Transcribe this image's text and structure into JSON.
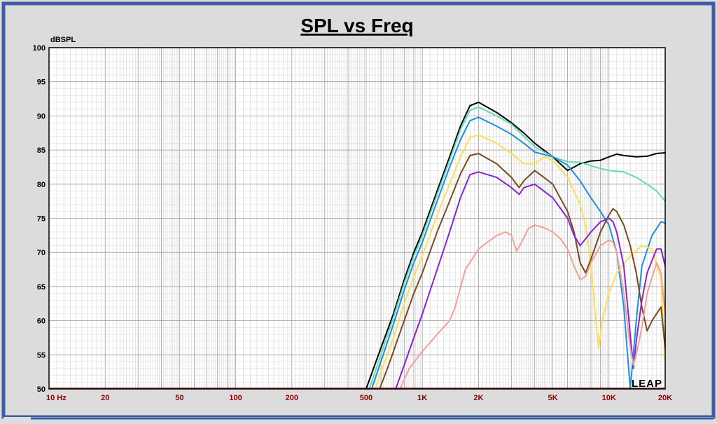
{
  "chart_data": {
    "type": "line",
    "title": "SPL vs Freq",
    "ylabel": "dBSPL",
    "xlabel": "",
    "x_scale": "log",
    "xlim": [
      10,
      20000
    ],
    "ylim": [
      50,
      100
    ],
    "x_ticks": [
      {
        "value": 10,
        "label": "10  Hz"
      },
      {
        "value": 20,
        "label": "20"
      },
      {
        "value": 50,
        "label": "50"
      },
      {
        "value": 100,
        "label": "100"
      },
      {
        "value": 200,
        "label": "200"
      },
      {
        "value": 500,
        "label": "500"
      },
      {
        "value": 1000,
        "label": "1K"
      },
      {
        "value": 2000,
        "label": "2K"
      },
      {
        "value": 5000,
        "label": "5K"
      },
      {
        "value": 10000,
        "label": "10K"
      },
      {
        "value": 20000,
        "label": "20K"
      }
    ],
    "y_ticks": [
      50,
      55,
      60,
      65,
      70,
      75,
      80,
      85,
      90,
      95,
      100
    ],
    "grid": true,
    "logo_text": "LEAP",
    "series": [
      {
        "color": "#000000",
        "points": [
          [
            500,
            50
          ],
          [
            600,
            56
          ],
          [
            700,
            61
          ],
          [
            800,
            66
          ],
          [
            900,
            70
          ],
          [
            1000,
            73
          ],
          [
            1200,
            79
          ],
          [
            1400,
            84
          ],
          [
            1600,
            88.5
          ],
          [
            1800,
            91.5
          ],
          [
            2000,
            92
          ],
          [
            2500,
            90.5
          ],
          [
            3000,
            89
          ],
          [
            3500,
            87.5
          ],
          [
            4000,
            86
          ],
          [
            5000,
            84
          ],
          [
            6000,
            82
          ],
          [
            6500,
            82.5
          ],
          [
            7000,
            83
          ],
          [
            8000,
            83.4
          ],
          [
            9000,
            83.5
          ],
          [
            10000,
            84
          ],
          [
            11000,
            84.4
          ],
          [
            12000,
            84.2
          ],
          [
            14000,
            84
          ],
          [
            16000,
            84.1
          ],
          [
            18000,
            84.5
          ],
          [
            20000,
            84.6
          ]
        ]
      },
      {
        "color": "#66d9b8",
        "points": [
          [
            520,
            50
          ],
          [
            600,
            55
          ],
          [
            700,
            60.5
          ],
          [
            800,
            65.5
          ],
          [
            900,
            69.5
          ],
          [
            1000,
            72.5
          ],
          [
            1200,
            78.5
          ],
          [
            1400,
            83.5
          ],
          [
            1600,
            88
          ],
          [
            1800,
            90.8
          ],
          [
            2000,
            91.3
          ],
          [
            2500,
            90
          ],
          [
            3000,
            88.8
          ],
          [
            3500,
            87
          ],
          [
            4000,
            85.5
          ],
          [
            5000,
            84
          ],
          [
            6000,
            83.3
          ],
          [
            7000,
            83.2
          ],
          [
            8000,
            82.7
          ],
          [
            9000,
            82.3
          ],
          [
            10000,
            82
          ],
          [
            12000,
            81.8
          ],
          [
            14000,
            81
          ],
          [
            16000,
            80
          ],
          [
            18000,
            79
          ],
          [
            20000,
            77.5
          ]
        ]
      },
      {
        "color": "#1f8fdc",
        "points": [
          [
            535,
            50
          ],
          [
            600,
            54
          ],
          [
            700,
            59.5
          ],
          [
            800,
            64.5
          ],
          [
            900,
            68.5
          ],
          [
            1000,
            71.5
          ],
          [
            1200,
            77.5
          ],
          [
            1400,
            82.5
          ],
          [
            1600,
            86.5
          ],
          [
            1800,
            89.3
          ],
          [
            2000,
            89.8
          ],
          [
            2500,
            88.5
          ],
          [
            3000,
            87.3
          ],
          [
            3500,
            86
          ],
          [
            4000,
            84.7
          ],
          [
            5000,
            84
          ],
          [
            6000,
            82.8
          ],
          [
            7000,
            80.5
          ],
          [
            8000,
            78
          ],
          [
            9000,
            76
          ],
          [
            10000,
            74
          ],
          [
            11000,
            70
          ],
          [
            12000,
            62
          ],
          [
            13000,
            50
          ],
          [
            14000,
            60
          ],
          [
            15000,
            68
          ],
          [
            17000,
            72.5
          ],
          [
            19000,
            74.5
          ],
          [
            20000,
            74.3
          ]
        ]
      },
      {
        "color": "#ffdd55",
        "points": [
          [
            560,
            50
          ],
          [
            600,
            52.5
          ],
          [
            700,
            57.5
          ],
          [
            800,
            62.5
          ],
          [
            900,
            66.5
          ],
          [
            1000,
            69.5
          ],
          [
            1200,
            75.5
          ],
          [
            1400,
            80
          ],
          [
            1600,
            84
          ],
          [
            1800,
            86.8
          ],
          [
            2000,
            87.2
          ],
          [
            2500,
            86
          ],
          [
            3000,
            84.5
          ],
          [
            3500,
            83
          ],
          [
            4000,
            83
          ],
          [
            4500,
            84
          ],
          [
            5000,
            83.5
          ],
          [
            6000,
            81
          ],
          [
            7000,
            77
          ],
          [
            7500,
            74
          ],
          [
            8000,
            68
          ],
          [
            8500,
            60
          ],
          [
            8800,
            56
          ],
          [
            9200,
            60
          ],
          [
            10000,
            64
          ],
          [
            11000,
            67
          ],
          [
            13000,
            69.5
          ],
          [
            15000,
            71
          ],
          [
            17000,
            70.5
          ],
          [
            19000,
            66
          ],
          [
            20000,
            54
          ]
        ]
      },
      {
        "color": "#7a4a1e",
        "points": [
          [
            590,
            50
          ],
          [
            650,
            53
          ],
          [
            700,
            55.5
          ],
          [
            800,
            60
          ],
          [
            900,
            64
          ],
          [
            1000,
            67
          ],
          [
            1200,
            73
          ],
          [
            1400,
            77.5
          ],
          [
            1600,
            81.5
          ],
          [
            1800,
            84.2
          ],
          [
            2000,
            84.5
          ],
          [
            2500,
            83
          ],
          [
            3000,
            81
          ],
          [
            3300,
            79.5
          ],
          [
            3500,
            80.5
          ],
          [
            4000,
            82
          ],
          [
            5000,
            80
          ],
          [
            6000,
            76
          ],
          [
            6500,
            73
          ],
          [
            7000,
            68.5
          ],
          [
            7500,
            67
          ],
          [
            8000,
            69
          ],
          [
            9000,
            73
          ],
          [
            10000,
            75.5
          ],
          [
            10500,
            76.4
          ],
          [
            11000,
            76
          ],
          [
            12000,
            74
          ],
          [
            13000,
            71
          ],
          [
            14000,
            67
          ],
          [
            15000,
            62
          ],
          [
            16000,
            58.5
          ],
          [
            17000,
            60
          ],
          [
            19000,
            62
          ],
          [
            20000,
            56
          ]
        ]
      },
      {
        "color": "#8a22d6",
        "points": [
          [
            720,
            50
          ],
          [
            800,
            53.5
          ],
          [
            900,
            57.5
          ],
          [
            1000,
            61
          ],
          [
            1200,
            67.5
          ],
          [
            1400,
            73
          ],
          [
            1600,
            78
          ],
          [
            1800,
            81.4
          ],
          [
            2000,
            81.8
          ],
          [
            2500,
            81
          ],
          [
            3000,
            79.5
          ],
          [
            3300,
            78.5
          ],
          [
            3500,
            79.5
          ],
          [
            4000,
            80
          ],
          [
            5000,
            78
          ],
          [
            6000,
            75
          ],
          [
            6500,
            72.5
          ],
          [
            7000,
            71
          ],
          [
            7500,
            72
          ],
          [
            8000,
            73
          ],
          [
            9000,
            74.5
          ],
          [
            10000,
            75
          ],
          [
            10500,
            74.5
          ],
          [
            11000,
            73
          ],
          [
            12000,
            68
          ],
          [
            13000,
            58
          ],
          [
            13500,
            53
          ],
          [
            14000,
            57
          ],
          [
            15000,
            63
          ],
          [
            16000,
            67
          ],
          [
            18000,
            70.5
          ],
          [
            19000,
            70.5
          ],
          [
            20000,
            68
          ]
        ]
      },
      {
        "color": "#f4a096",
        "points": [
          [
            760,
            50
          ],
          [
            850,
            53
          ],
          [
            1000,
            55.5
          ],
          [
            1200,
            58
          ],
          [
            1400,
            60
          ],
          [
            1500,
            62
          ],
          [
            1700,
            67.5
          ],
          [
            2000,
            70.5
          ],
          [
            2500,
            72.5
          ],
          [
            2800,
            73
          ],
          [
            3000,
            72.5
          ],
          [
            3200,
            70.2
          ],
          [
            3400,
            71.5
          ],
          [
            3700,
            73.5
          ],
          [
            4000,
            74
          ],
          [
            4500,
            73.6
          ],
          [
            5000,
            73
          ],
          [
            5500,
            72
          ],
          [
            6000,
            70.5
          ],
          [
            6500,
            68
          ],
          [
            7000,
            66
          ],
          [
            7500,
            66.5
          ],
          [
            8000,
            68.5
          ],
          [
            9000,
            71
          ],
          [
            10000,
            71.8
          ],
          [
            10500,
            71.5
          ],
          [
            11000,
            70
          ],
          [
            12000,
            64
          ],
          [
            13000,
            56
          ],
          [
            13500,
            53.5
          ],
          [
            14000,
            55
          ],
          [
            15000,
            59
          ],
          [
            16000,
            64
          ],
          [
            18000,
            68.5
          ],
          [
            19000,
            67
          ],
          [
            20000,
            61
          ]
        ]
      }
    ]
  }
}
